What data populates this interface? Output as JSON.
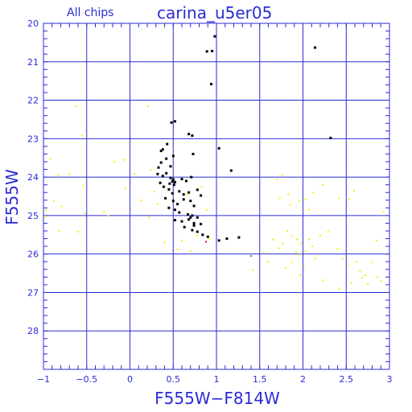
{
  "chart_data": {
    "type": "scatter",
    "title": "carina_u5er05",
    "subtitle": "All chips",
    "xlabel": "F555W−F814W",
    "ylabel": "F555W",
    "xlim": [
      -1,
      3
    ],
    "ylim": [
      29,
      20
    ],
    "y_inverted": true,
    "grid": true,
    "x_ticks": [
      {
        "value": -1,
        "label": "−1"
      },
      {
        "value": -0.5,
        "label": "−0.5"
      },
      {
        "value": 0,
        "label": "0"
      },
      {
        "value": 0.5,
        "label": "0.5"
      },
      {
        "value": 1,
        "label": "1"
      },
      {
        "value": 1.5,
        "label": "1.5"
      },
      {
        "value": 2,
        "label": "2"
      },
      {
        "value": 2.5,
        "label": "2.5"
      },
      {
        "value": 3,
        "label": "3"
      }
    ],
    "y_ticks": [
      {
        "value": 20,
        "label": "20"
      },
      {
        "value": 21,
        "label": "21"
      },
      {
        "value": 22,
        "label": "22"
      },
      {
        "value": 23,
        "label": "23"
      },
      {
        "value": 24,
        "label": "24"
      },
      {
        "value": 25,
        "label": "25"
      },
      {
        "value": 26,
        "label": "26"
      },
      {
        "value": 27,
        "label": "27"
      },
      {
        "value": 28,
        "label": "28"
      }
    ],
    "colors": {
      "axis": "#2b2bd6",
      "grid": "#2b2bd6",
      "primary": "#000000",
      "secondary": "#f0f000",
      "highlight": "#e00000",
      "accent": "#00c000"
    },
    "series": [
      {
        "color": "#000000",
        "points": [
          [
            0.98,
            20.34
          ],
          [
            0.89,
            20.73
          ],
          [
            0.95,
            20.72
          ],
          [
            2.14,
            20.63
          ],
          [
            0.94,
            21.58
          ],
          [
            0.52,
            22.55
          ],
          [
            0.48,
            22.58
          ],
          [
            0.68,
            22.88
          ],
          [
            0.72,
            22.92
          ],
          [
            2.32,
            22.98
          ],
          [
            1.03,
            23.25
          ],
          [
            0.43,
            23.14
          ],
          [
            0.38,
            23.28
          ],
          [
            0.36,
            23.32
          ],
          [
            0.73,
            23.4
          ],
          [
            0.5,
            23.45
          ],
          [
            0.42,
            23.52
          ],
          [
            0.36,
            23.62
          ],
          [
            0.33,
            23.75
          ],
          [
            0.47,
            23.72
          ],
          [
            1.17,
            23.83
          ],
          [
            0.32,
            23.92
          ],
          [
            0.38,
            23.97
          ],
          [
            0.42,
            23.9
          ],
          [
            0.47,
            24.02
          ],
          [
            0.5,
            24.06
          ],
          [
            0.52,
            24.13
          ],
          [
            0.46,
            24.17
          ],
          [
            0.49,
            24.11
          ],
          [
            0.51,
            24.2
          ],
          [
            0.6,
            24.05
          ],
          [
            0.65,
            24.1
          ],
          [
            0.71,
            24.0
          ],
          [
            0.35,
            24.15
          ],
          [
            0.39,
            24.25
          ],
          [
            0.45,
            24.32
          ],
          [
            0.49,
            24.42
          ],
          [
            0.57,
            24.37
          ],
          [
            0.62,
            24.45
          ],
          [
            0.68,
            24.4
          ],
          [
            0.78,
            24.33
          ],
          [
            0.82,
            24.48
          ],
          [
            0.41,
            24.55
          ],
          [
            0.5,
            24.62
          ],
          [
            0.55,
            24.7
          ],
          [
            0.62,
            24.58
          ],
          [
            0.7,
            24.62
          ],
          [
            0.74,
            24.75
          ],
          [
            0.45,
            24.8
          ],
          [
            0.52,
            24.85
          ],
          [
            0.57,
            24.92
          ],
          [
            0.67,
            24.97
          ],
          [
            0.72,
            25.0
          ],
          [
            0.78,
            25.05
          ],
          [
            0.52,
            25.12
          ],
          [
            0.6,
            25.15
          ],
          [
            0.68,
            25.1
          ],
          [
            0.74,
            25.2
          ],
          [
            0.82,
            25.22
          ],
          [
            0.63,
            25.3
          ],
          [
            0.72,
            25.38
          ],
          [
            0.78,
            25.42
          ],
          [
            0.84,
            25.5
          ],
          [
            0.9,
            25.55
          ],
          [
            1.03,
            25.65
          ],
          [
            1.12,
            25.6
          ],
          [
            1.26,
            25.57
          ],
          [
            0.74,
            25.26
          ],
          [
            0.7,
            25.05
          ]
        ]
      },
      {
        "color": "#f0f000",
        "points": [
          [
            -0.92,
            23.52
          ],
          [
            -0.83,
            23.95
          ],
          [
            -0.7,
            23.92
          ],
          [
            -0.62,
            22.15
          ],
          [
            -0.55,
            22.92
          ],
          [
            -0.88,
            24.62
          ],
          [
            -0.79,
            24.76
          ],
          [
            -0.97,
            24.86
          ],
          [
            -0.54,
            24.22
          ],
          [
            -0.52,
            24.95
          ],
          [
            -0.6,
            25.42
          ],
          [
            -0.82,
            25.4
          ],
          [
            -0.98,
            25.02
          ],
          [
            -0.3,
            24.9
          ],
          [
            -0.25,
            25.0
          ],
          [
            -0.18,
            23.6
          ],
          [
            -0.07,
            23.55
          ],
          [
            -0.05,
            24.3
          ],
          [
            0.05,
            23.92
          ],
          [
            0.13,
            24.6
          ],
          [
            0.21,
            22.15
          ],
          [
            0.24,
            23.82
          ],
          [
            0.28,
            24.38
          ],
          [
            0.32,
            24.7
          ],
          [
            0.22,
            25.05
          ],
          [
            0.4,
            25.7
          ],
          [
            0.55,
            25.88
          ],
          [
            0.6,
            25.65
          ],
          [
            0.66,
            24.45
          ],
          [
            0.78,
            25.52
          ],
          [
            0.83,
            24.25
          ],
          [
            0.89,
            24.85
          ],
          [
            0.91,
            25.6
          ],
          [
            0.7,
            25.92
          ],
          [
            1.7,
            24.05
          ],
          [
            1.76,
            23.95
          ],
          [
            1.73,
            24.55
          ],
          [
            1.83,
            24.45
          ],
          [
            1.85,
            24.72
          ],
          [
            1.96,
            24.62
          ],
          [
            2.03,
            24.58
          ],
          [
            2.12,
            24.4
          ],
          [
            2.23,
            24.2
          ],
          [
            2.42,
            24.55
          ],
          [
            2.53,
            24.58
          ],
          [
            2.59,
            24.35
          ],
          [
            2.93,
            24.9
          ],
          [
            2.07,
            24.85
          ],
          [
            1.65,
            25.62
          ],
          [
            1.72,
            25.85
          ],
          [
            1.77,
            25.72
          ],
          [
            1.82,
            25.4
          ],
          [
            1.87,
            25.52
          ],
          [
            1.93,
            25.62
          ],
          [
            1.98,
            25.72
          ],
          [
            2.03,
            25.92
          ],
          [
            1.96,
            26.02
          ],
          [
            1.92,
            25.95
          ],
          [
            1.87,
            26.22
          ],
          [
            2.01,
            26.32
          ],
          [
            2.07,
            25.62
          ],
          [
            2.11,
            25.8
          ],
          [
            2.2,
            25.52
          ],
          [
            2.29,
            25.42
          ],
          [
            2.4,
            25.87
          ],
          [
            2.46,
            26.12
          ],
          [
            2.52,
            26.3
          ],
          [
            2.62,
            26.2
          ],
          [
            2.72,
            26.55
          ],
          [
            2.8,
            26.22
          ],
          [
            2.86,
            26.6
          ],
          [
            2.9,
            26.7
          ],
          [
            2.75,
            26.78
          ],
          [
            2.56,
            26.75
          ],
          [
            2.42,
            26.9
          ],
          [
            2.66,
            26.45
          ],
          [
            2.85,
            25.65
          ],
          [
            1.42,
            26.42
          ],
          [
            1.6,
            26.2
          ],
          [
            1.97,
            26.55
          ],
          [
            2.23,
            26.68
          ],
          [
            1.55,
            25.97
          ],
          [
            1.8,
            26.37
          ],
          [
            2.14,
            26.12
          ],
          [
            2.68,
            26.62
          ]
        ]
      },
      {
        "color": "#e00000",
        "points": [
          [
            0.88,
            25.68
          ]
        ]
      },
      {
        "color": "#00c000",
        "points": [
          [
            1.4,
            26.05
          ]
        ]
      }
    ]
  }
}
